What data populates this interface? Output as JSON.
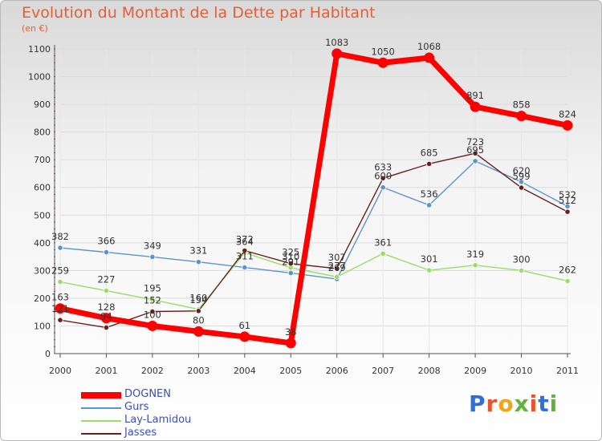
{
  "title": "Evolution du Montant de la Dette par Habitant",
  "subtitle": "(en €)",
  "logo": {
    "text": "Proxiti",
    "letter_colors": [
      "#2f6fd6",
      "#e7542e",
      "#f0a418",
      "#5fb341",
      "#e7542e",
      "#2f6fd6",
      "#5fb341"
    ]
  },
  "chart_data": {
    "type": "line",
    "title": "Evolution du Montant de la Dette par Habitant",
    "subtitle": "(en €)",
    "xlabel": "",
    "ylabel": "",
    "categories": [
      "2000",
      "2001",
      "2002",
      "2003",
      "2004",
      "2005",
      "2006",
      "2007",
      "2008",
      "2009",
      "2010",
      "2011"
    ],
    "ylim": [
      0,
      1100
    ],
    "yticks": [
      0,
      100,
      200,
      300,
      400,
      500,
      600,
      700,
      800,
      900,
      1000,
      1100
    ],
    "grid": true,
    "legend_position": "bottom-left",
    "series": [
      {
        "name": "DOGNEN",
        "color": "#ff0000",
        "values": [
          163,
          128,
          100,
          80,
          61,
          38,
          1083,
          1050,
          1068,
          891,
          858,
          824
        ]
      },
      {
        "name": "Gurs",
        "color": "#5b94c8",
        "values": [
          382,
          366,
          349,
          331,
          311,
          291,
          269,
          600,
          536,
          695,
          620,
          532
        ]
      },
      {
        "name": "Lay-Lamidou",
        "color": "#99dd66",
        "values": [
          259,
          227,
          195,
          160,
          364,
          310,
          277,
          361,
          301,
          319,
          300,
          262
        ]
      },
      {
        "name": "Jasses",
        "color": "#6b1f1f",
        "values": [
          121,
          94,
          152,
          154,
          372,
          325,
          307,
          633,
          685,
          723,
          599,
          512
        ]
      }
    ]
  }
}
